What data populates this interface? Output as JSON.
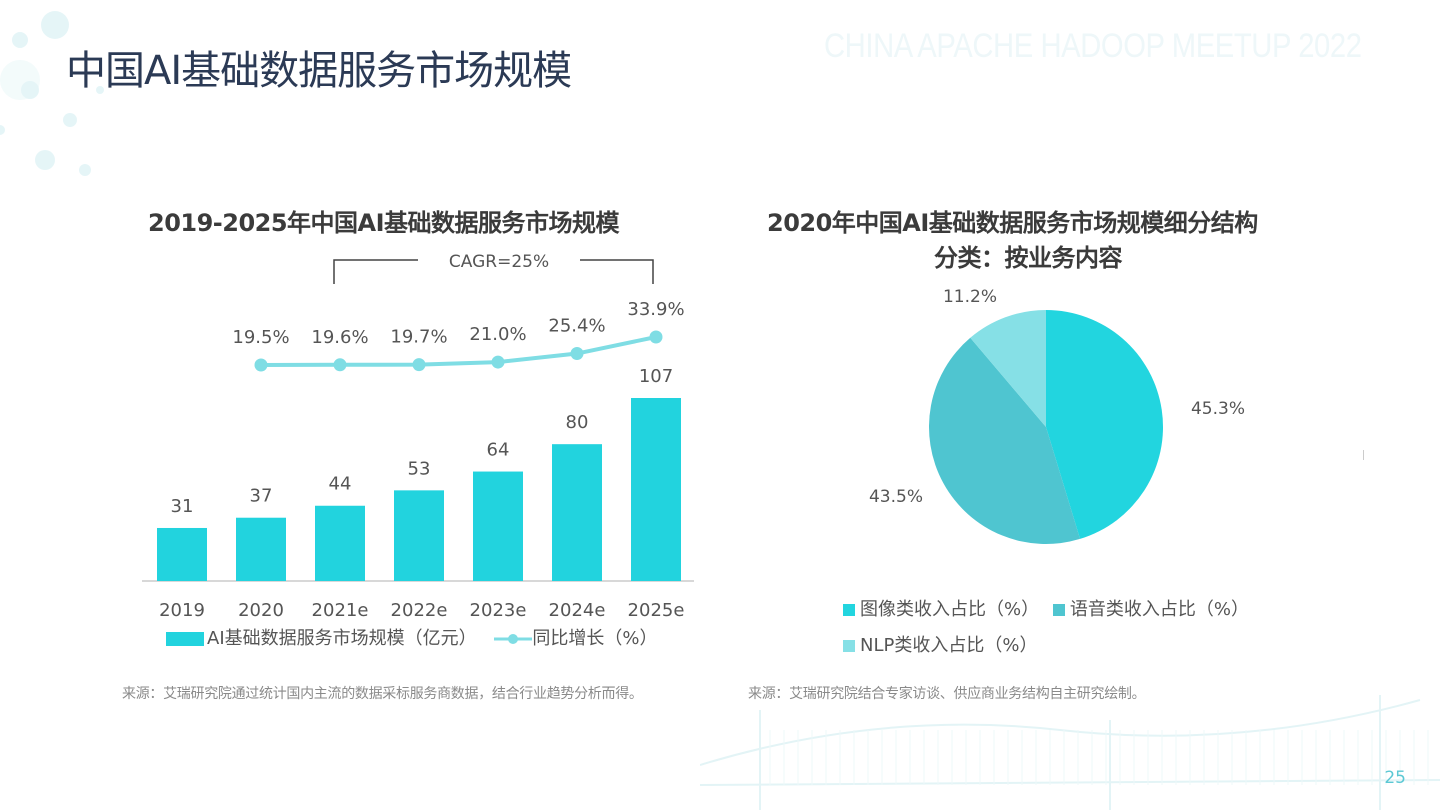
{
  "page": {
    "title": "中国AI基础数据服务市场规模",
    "watermark": "CHINA APACHE HADOOP MEETUP 2022",
    "page_number": "25"
  },
  "colors": {
    "bar": "#22d3de",
    "line": "#7fdde4",
    "pie_image": "#22d5df",
    "pie_voice": "#4fc5d0",
    "pie_nlp": "#86e0e6",
    "title_dark": "#2b3a55",
    "text": "#555555"
  },
  "sources": {
    "left": "来源：艾瑞研究院通过统计国内主流的数据采标服务商数据，结合行业趋势分析而得。",
    "right": "来源：艾瑞研究院结合专家访谈、供应商业务结构自主研究绘制。"
  },
  "chart_data": [
    {
      "type": "bar",
      "title": "2019-2025年中国AI基础数据服务市场规模",
      "categories": [
        "2019",
        "2020",
        "2021e",
        "2022e",
        "2023e",
        "2024e",
        "2025e"
      ],
      "series": [
        {
          "name": "AI基础数据服务市场规模（亿元）",
          "type": "bar",
          "values": [
            31,
            37,
            44,
            53,
            64,
            80,
            107
          ]
        },
        {
          "name": "同比增长（%）",
          "type": "line",
          "values": [
            19.5,
            19.6,
            19.7,
            21.0,
            25.4,
            33.9
          ],
          "categories": [
            "2020",
            "2021e",
            "2022e",
            "2023e",
            "2024e",
            "2025e"
          ],
          "labels": [
            "19.5%",
            "19.6%",
            "19.7%",
            "21.0%",
            "25.4%",
            "33.9%"
          ]
        }
      ],
      "annotation": "CAGR=25%",
      "annotation_span": [
        "2021e",
        "2025e"
      ],
      "legend_position": "bottom",
      "grid": false,
      "xlabel": "",
      "ylabel": ""
    },
    {
      "type": "pie",
      "title": "2020年中国AI基础数据服务市场规模细分结构",
      "subtitle": "分类：按业务内容",
      "slices": [
        {
          "name": "图像类收入占比（%）",
          "value": 45.3,
          "label": "45.3%"
        },
        {
          "name": "语音类收入占比（%）",
          "value": 43.5,
          "label": "43.5%"
        },
        {
          "name": "NLP类收入占比（%）",
          "value": 11.2,
          "label": "11.2%"
        }
      ],
      "legend_position": "bottom"
    }
  ]
}
